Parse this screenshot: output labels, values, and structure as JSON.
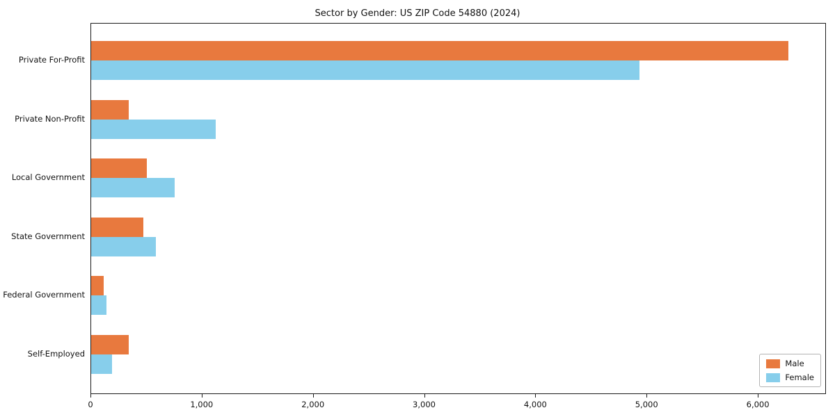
{
  "chart_data": {
    "type": "bar",
    "orientation": "horizontal",
    "title": "Sector by Gender: US ZIP Code 54880 (2024)",
    "categories": [
      "Private For-Profit",
      "Private Non-Profit",
      "Local Government",
      "State Government",
      "Federal Government",
      "Self-Employed"
    ],
    "series": [
      {
        "name": "Male",
        "color": "#e8793e",
        "values": [
          6270,
          340,
          500,
          470,
          110,
          340
        ]
      },
      {
        "name": "Female",
        "color": "#87ceeb",
        "values": [
          4930,
          1120,
          750,
          580,
          140,
          190
        ]
      }
    ],
    "xlim": [
      0,
      6600
    ],
    "xticks": [
      0,
      1000,
      2000,
      3000,
      4000,
      5000,
      6000
    ],
    "xtick_labels": [
      "0",
      "1,000",
      "2,000",
      "3,000",
      "4,000",
      "5,000",
      "6,000"
    ],
    "grid": false,
    "legend_position": "lower right",
    "legend_labels": [
      "Male",
      "Female"
    ]
  }
}
